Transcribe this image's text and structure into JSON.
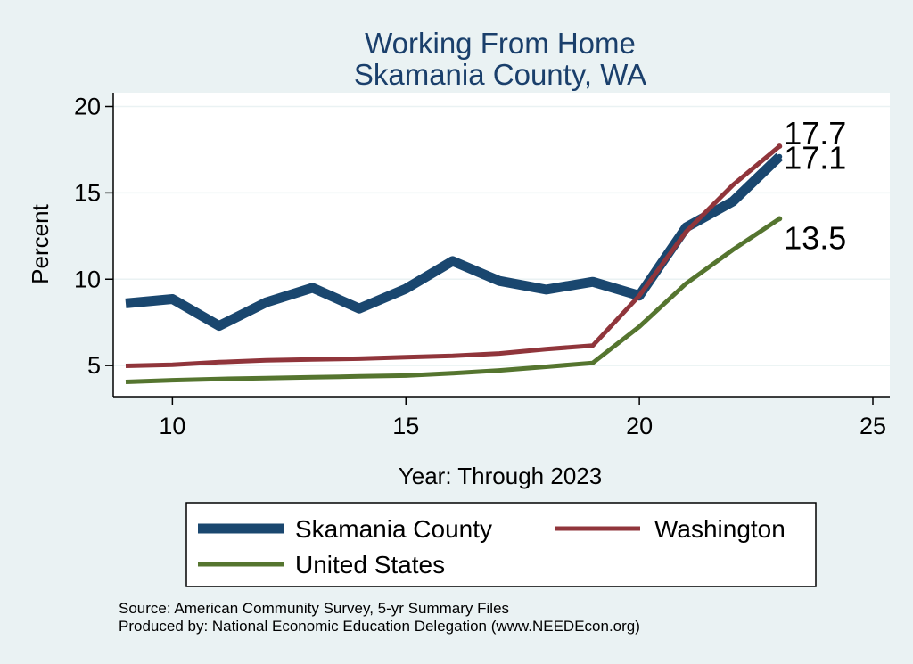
{
  "chart_data": {
    "type": "line",
    "title": "Working From Home",
    "subtitle": "Skamania County, WA",
    "xlabel": "Year: Through 2023",
    "ylabel": "Percent",
    "xlim": [
      9,
      25
    ],
    "ylim": [
      3.2,
      20.8
    ],
    "xticks": [
      10,
      15,
      20,
      25
    ],
    "yticks": [
      5,
      10,
      15,
      20
    ],
    "grid": true,
    "legend_position": "bottom",
    "x": [
      9,
      10,
      11,
      12,
      13,
      14,
      15,
      16,
      17,
      18,
      19,
      20,
      21,
      22,
      23
    ],
    "series": [
      {
        "name": "Skamania County",
        "color": "#1a476f",
        "values": [
          8.6,
          8.85,
          7.3,
          8.65,
          9.5,
          8.3,
          9.45,
          11.05,
          9.9,
          9.4,
          9.85,
          9.05,
          13.0,
          14.5,
          17.1
        ],
        "end_label": "17.1"
      },
      {
        "name": "Washington",
        "color": "#90353b",
        "values": [
          4.98,
          5.05,
          5.2,
          5.3,
          5.35,
          5.4,
          5.48,
          5.56,
          5.7,
          5.95,
          6.15,
          9.05,
          12.75,
          15.45,
          17.7
        ],
        "end_label": "17.7"
      },
      {
        "name": "United States",
        "color": "#55752f",
        "values": [
          4.05,
          4.15,
          4.22,
          4.27,
          4.32,
          4.37,
          4.42,
          4.55,
          4.72,
          4.93,
          5.15,
          7.25,
          9.75,
          11.7,
          13.5
        ],
        "end_label": "13.5"
      }
    ]
  },
  "source_note": "Source: American Community Survey, 5-yr Summary Files",
  "producer_note": "Produced by: National Economic Education Delegation (www.NEEDEcon.org)"
}
